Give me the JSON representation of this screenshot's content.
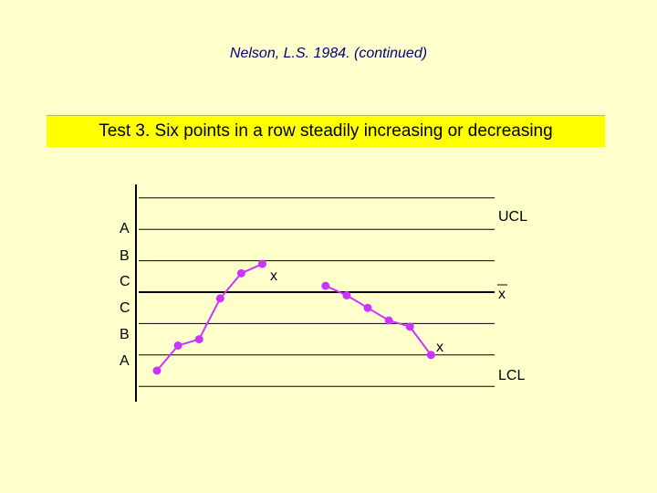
{
  "subtitle": "Nelson, L.S. 1984. (continued)",
  "title": "Test 3. Six points in a row steadily increasing or decreasing",
  "colors": {
    "background": "#ffffcc",
    "title_band": "#ffff00",
    "subtitle": "#000080",
    "series": "#cc33ff",
    "axis": "#000000"
  },
  "chart_data": {
    "type": "line",
    "zones_left": [
      "A",
      "B",
      "C",
      "C",
      "B",
      "A"
    ],
    "limit_labels": {
      "ucl": "UCL",
      "center": "x",
      "lcl": "LCL"
    },
    "violation_marker": "x",
    "series": [
      {
        "values": [
          -2.5,
          -1.7,
          -1.5,
          -0.2,
          0.6,
          0.9
        ]
      },
      {
        "values": [
          0.2,
          -0.1,
          -0.5,
          -0.9,
          -1.1,
          -2.0
        ]
      }
    ]
  }
}
